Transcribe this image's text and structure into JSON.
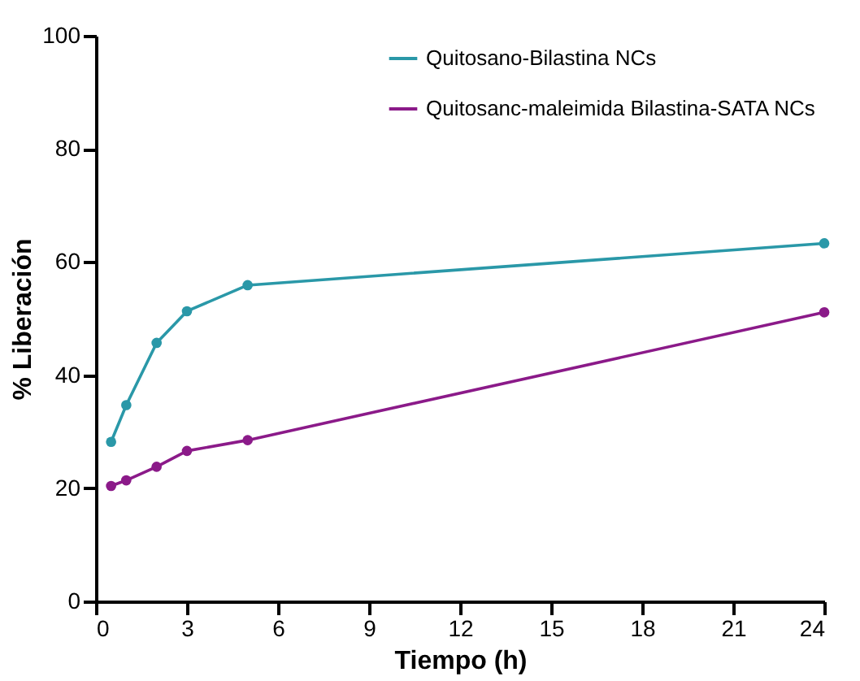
{
  "chart_data": {
    "type": "line",
    "xlabel": "Tiempo (h)",
    "ylabel": "% Liberación",
    "x": [
      0.5,
      1,
      2,
      3,
      5,
      24
    ],
    "series": [
      {
        "name": "Quitosano-Bilastina NCs",
        "color": "#2a98a8",
        "values": [
          28.2,
          34.7,
          45.7,
          51.3,
          55.9,
          63.3
        ]
      },
      {
        "name": "Quitosanc-maleimida Bilastina-SATA NCs",
        "color": "#8b1a89",
        "values": [
          20.4,
          21.4,
          23.8,
          26.6,
          28.5,
          51.1
        ]
      }
    ],
    "xlim": [
      0,
      24
    ],
    "xticks": [
      0,
      3,
      6,
      9,
      12,
      15,
      18,
      21,
      24
    ],
    "ylim": [
      0,
      100
    ],
    "yticks": [
      0,
      20,
      40,
      60,
      80,
      100
    ],
    "grid": false,
    "legend": "top right",
    "marker": "circle",
    "line_style": "solid"
  }
}
